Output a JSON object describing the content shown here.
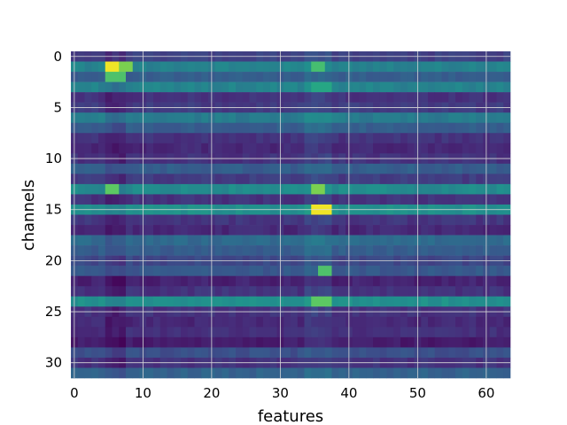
{
  "chart_data": {
    "type": "heatmap",
    "title": "",
    "xlabel": "features",
    "ylabel": "channels",
    "n_cols": 64,
    "n_rows": 32,
    "xlim": [
      -0.5,
      63.5
    ],
    "ylim": [
      31.5,
      -0.5
    ],
    "x_ticks": [
      0,
      10,
      20,
      30,
      40,
      50,
      60
    ],
    "y_ticks": [
      0,
      5,
      10,
      15,
      20,
      25,
      30
    ],
    "grid": true,
    "colormap": "viridis",
    "value_range": [
      0,
      1
    ],
    "row_levels": [
      0.2,
      0.45,
      0.3,
      0.45,
      0.15,
      0.18,
      0.42,
      0.3,
      0.15,
      0.12,
      0.15,
      0.3,
      0.18,
      0.48,
      0.15,
      0.5,
      0.16,
      0.12,
      0.35,
      0.3,
      0.22,
      0.28,
      0.1,
      0.15,
      0.5,
      0.15,
      0.12,
      0.14,
      0.08,
      0.25,
      0.15,
      0.32
    ],
    "hotspots": [
      {
        "row": 1,
        "col_start": 5,
        "col_end": 6,
        "value": 0.98
      },
      {
        "row": 1,
        "col_start": 7,
        "col_end": 8,
        "value": 0.8
      },
      {
        "row": 2,
        "col_start": 5,
        "col_end": 7,
        "value": 0.72
      },
      {
        "row": 1,
        "col_start": 35,
        "col_end": 36,
        "value": 0.7
      },
      {
        "row": 13,
        "col_start": 5,
        "col_end": 6,
        "value": 0.75
      },
      {
        "row": 13,
        "col_start": 35,
        "col_end": 36,
        "value": 0.8
      },
      {
        "row": 15,
        "col_start": 35,
        "col_end": 37,
        "value": 0.98
      },
      {
        "row": 21,
        "col_start": 36,
        "col_end": 37,
        "value": 0.72
      },
      {
        "row": 24,
        "col_start": 35,
        "col_end": 37,
        "value": 0.75
      },
      {
        "row": 3,
        "col_start": 35,
        "col_end": 37,
        "value": 0.6
      }
    ],
    "dark_column_bands": [
      {
        "col_start": 5,
        "col_end": 7,
        "delta": -0.06
      },
      {
        "col_start": 34,
        "col_end": 37,
        "delta": 0.05
      }
    ]
  }
}
